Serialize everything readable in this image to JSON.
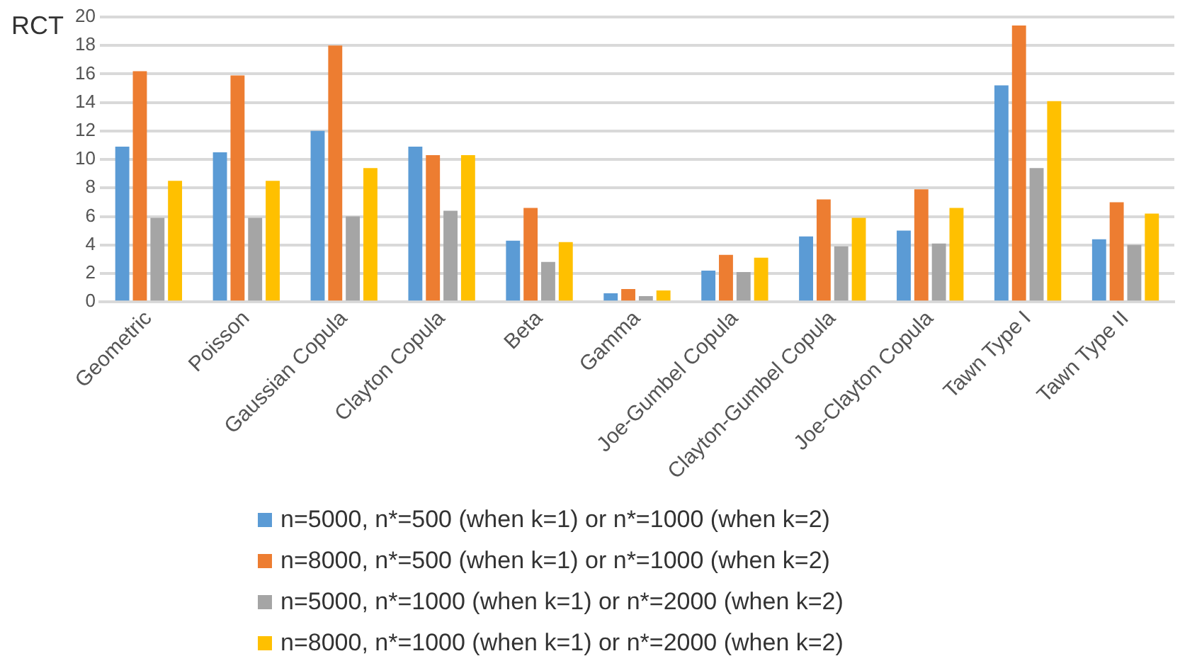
{
  "chart_data": {
    "type": "bar",
    "ylabel": "RCT",
    "categories": [
      "Geometric",
      "Poisson",
      "Gaussian Copula",
      "Clayton Copula",
      "Beta",
      "Gamma",
      "Joe-Gumbel Copula",
      "Clayton-Gumbel Copula",
      "Joe-Clayton Copula",
      "Tawn Type I",
      "Tawn Type II"
    ],
    "series": [
      {
        "name": "n=5000, n*=500 (when k=1) or n*=1000 (when k=2)",
        "color": "#5b9bd5",
        "values": [
          10.9,
          10.5,
          12.0,
          10.9,
          4.3,
          0.6,
          2.2,
          4.6,
          5.0,
          15.2,
          4.4
        ]
      },
      {
        "name": "n=8000, n*=500 (when k=1) or n*=1000 (when k=2)",
        "color": "#ed7d31",
        "values": [
          16.2,
          15.9,
          18.0,
          10.3,
          6.6,
          0.9,
          3.3,
          7.2,
          7.9,
          19.4,
          7.0
        ]
      },
      {
        "name": "n=5000, n*=1000 (when k=1) or n*=2000 (when k=2)",
        "color": "#a5a5a5",
        "values": [
          5.9,
          5.9,
          6.0,
          6.4,
          2.8,
          0.4,
          2.1,
          3.9,
          4.1,
          9.4,
          4.0
        ]
      },
      {
        "name": "n=8000, n*=1000 (when k=1) or n*=2000 (when k=2)",
        "color": "#ffc000",
        "values": [
          8.5,
          8.5,
          9.4,
          10.3,
          4.2,
          0.8,
          3.1,
          5.9,
          6.6,
          14.1,
          6.2
        ]
      }
    ],
    "ylim": [
      0,
      20
    ],
    "yticks": [
      0,
      2,
      4,
      6,
      8,
      10,
      12,
      14,
      16,
      18,
      20
    ],
    "grid": "y",
    "legend": "bottom"
  }
}
